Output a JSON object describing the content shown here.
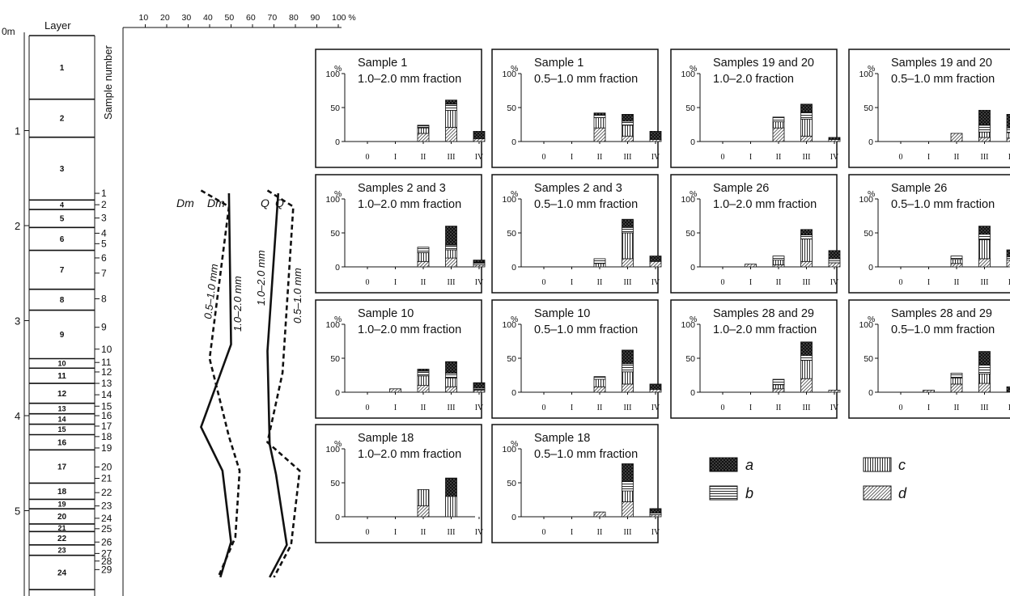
{
  "depth_axis": {
    "unit_top": "0m",
    "ticks": [
      "0",
      "1",
      "2",
      "3",
      "4",
      "5"
    ]
  },
  "layer_column": {
    "header": "Layer",
    "layers": [
      {
        "label": "1",
        "top": 0.0,
        "bottom": 0.67
      },
      {
        "label": "2",
        "top": 0.67,
        "bottom": 1.07
      },
      {
        "label": "3",
        "top": 1.07,
        "bottom": 1.73
      },
      {
        "label": "4",
        "top": 1.73,
        "bottom": 1.83
      },
      {
        "label": "5",
        "top": 1.83,
        "bottom": 2.02
      },
      {
        "label": "6",
        "top": 2.02,
        "bottom": 2.26
      },
      {
        "label": "7",
        "top": 2.26,
        "bottom": 2.67
      },
      {
        "label": "8",
        "top": 2.67,
        "bottom": 2.89
      },
      {
        "label": "9",
        "top": 2.89,
        "bottom": 3.4
      },
      {
        "label": "10",
        "top": 3.4,
        "bottom": 3.5
      },
      {
        "label": "11",
        "top": 3.5,
        "bottom": 3.66
      },
      {
        "label": "12",
        "top": 3.66,
        "bottom": 3.87
      },
      {
        "label": "13",
        "top": 3.87,
        "bottom": 3.98
      },
      {
        "label": "14",
        "top": 3.98,
        "bottom": 4.09
      },
      {
        "label": "15",
        "top": 4.09,
        "bottom": 4.2
      },
      {
        "label": "16",
        "top": 4.2,
        "bottom": 4.36
      },
      {
        "label": "17",
        "top": 4.36,
        "bottom": 4.71
      },
      {
        "label": "18",
        "top": 4.71,
        "bottom": 4.88
      },
      {
        "label": "19",
        "top": 4.88,
        "bottom": 4.98
      },
      {
        "label": "20",
        "top": 4.98,
        "bottom": 5.14
      },
      {
        "label": "21",
        "top": 5.14,
        "bottom": 5.22
      },
      {
        "label": "22",
        "top": 5.22,
        "bottom": 5.36
      },
      {
        "label": "23",
        "top": 5.36,
        "bottom": 5.47
      },
      {
        "label": "24",
        "top": 5.47,
        "bottom": 5.83
      }
    ]
  },
  "sample_numbers": {
    "header": "Sample number",
    "items": [
      {
        "label": "1",
        "depth": 1.66
      },
      {
        "label": "2",
        "depth": 1.78
      },
      {
        "label": "3",
        "depth": 1.92
      },
      {
        "label": "4",
        "depth": 2.08
      },
      {
        "label": "5",
        "depth": 2.19
      },
      {
        "label": "6",
        "depth": 2.34
      },
      {
        "label": "7",
        "depth": 2.5
      },
      {
        "label": "8",
        "depth": 2.77
      },
      {
        "label": "9",
        "depth": 3.07
      },
      {
        "label": "10",
        "depth": 3.3
      },
      {
        "label": "11",
        "depth": 3.44
      },
      {
        "label": "12",
        "depth": 3.54
      },
      {
        "label": "13",
        "depth": 3.66
      },
      {
        "label": "14",
        "depth": 3.78
      },
      {
        "label": "15",
        "depth": 3.9
      },
      {
        "label": "16",
        "depth": 4.0
      },
      {
        "label": "17",
        "depth": 4.11
      },
      {
        "label": "18",
        "depth": 4.22
      },
      {
        "label": "19",
        "depth": 4.34
      },
      {
        "label": "20",
        "depth": 4.54
      },
      {
        "label": "21",
        "depth": 4.66
      },
      {
        "label": "22",
        "depth": 4.81
      },
      {
        "label": "23",
        "depth": 4.95
      },
      {
        "label": "24",
        "depth": 5.08
      },
      {
        "label": "25",
        "depth": 5.19
      },
      {
        "label": "26",
        "depth": 5.33
      },
      {
        "label": "27",
        "depth": 5.45
      },
      {
        "label": "28",
        "depth": 5.53
      },
      {
        "label": "29",
        "depth": 5.62
      }
    ]
  },
  "curves_axis": {
    "ticks": [
      "10",
      "20",
      "30",
      "40",
      "50",
      "60",
      "70",
      "80",
      "90",
      "100 %"
    ]
  },
  "curve_labels": {
    "dm_top_1": "Dm",
    "dm_top_2": "Dm",
    "q_top_1": "Q",
    "q_top_2": "Q",
    "dm_fine": "0.5–1.0 mm",
    "dm_coarse": "1.0–2.0 mm",
    "q_coarse": "1.0–2.0 mm",
    "q_fine": "0.5–1.0 mm"
  },
  "chart_data": [
    {
      "type": "line",
      "title": "",
      "xlabel": "",
      "ylabel": "",
      "xlim": [
        0,
        100
      ],
      "ylim": [
        0,
        5.83
      ],
      "series": [
        {
          "name": "Dm 0.5–1.0 mm",
          "style": "dashed",
          "points": [
            [
              36,
              1.63
            ],
            [
              49,
              1.8
            ],
            [
              40,
              3.4
            ],
            [
              49,
              4.22
            ],
            [
              54,
              4.58
            ],
            [
              52,
              5.28
            ],
            [
              44,
              5.7
            ]
          ]
        },
        {
          "name": "Dm 1.0–2.0 mm",
          "style": "solid",
          "points": [
            [
              49,
              1.66
            ],
            [
              50,
              3.25
            ],
            [
              36,
              4.12
            ],
            [
              46,
              4.58
            ],
            [
              50,
              5.33
            ],
            [
              45,
              5.7
            ]
          ]
        },
        {
          "name": "Q 1.0–2.0 mm",
          "style": "solid",
          "points": [
            [
              72,
              1.66
            ],
            [
              67,
              3.32
            ],
            [
              68,
              4.3
            ],
            [
              71,
              4.62
            ],
            [
              76,
              5.36
            ],
            [
              68,
              5.7
            ]
          ]
        },
        {
          "name": "Q 0.5–1.0 mm",
          "style": "dashed",
          "points": [
            [
              67,
              1.63
            ],
            [
              79,
              1.8
            ],
            [
              74,
              3.55
            ],
            [
              67,
              4.28
            ],
            [
              82,
              4.58
            ],
            [
              78,
              5.36
            ],
            [
              70,
              5.7
            ]
          ]
        }
      ]
    },
    {
      "type": "bar",
      "categories": [
        "0",
        "I",
        "II",
        "III",
        "IV"
      ],
      "ylim": [
        0,
        100
      ],
      "yticks": [
        "0",
        "50",
        "100"
      ],
      "y_unit": "%",
      "legend_classes": [
        "a",
        "b",
        "c",
        "d"
      ],
      "panels": [
        {
          "title": [
            "Sample 1",
            "1.0–2.0 mm fraction"
          ],
          "bars": [
            null,
            null,
            {
              "a": 1,
              "b": 3,
              "c": 8,
              "d": 12
            },
            {
              "a": 6,
              "b": 9,
              "c": 25,
              "d": 21
            },
            {
              "a": 11,
              "b": 0,
              "c": 0,
              "d": 4
            }
          ]
        },
        {
          "title": [
            "Sample 1",
            "0.5–1.0 mm fraction"
          ],
          "bars": [
            null,
            null,
            {
              "a": 3,
              "b": 4,
              "c": 15,
              "d": 20
            },
            {
              "a": 10,
              "b": 6,
              "c": 16,
              "d": 8
            },
            {
              "a": 12,
              "b": 0,
              "c": 0,
              "d": 3
            }
          ]
        },
        {
          "title": [
            "Samples 19 and 20",
            "1.0–2.0 fraction"
          ],
          "bars": [
            null,
            null,
            {
              "a": 0,
              "b": 7,
              "c": 9,
              "d": 20
            },
            {
              "a": 12,
              "b": 10,
              "c": 25,
              "d": 8
            },
            {
              "a": 3,
              "b": 0,
              "c": 0,
              "d": 3
            }
          ]
        },
        {
          "title": [
            "Samples 19 and 20",
            "0.5–1.0 mm fraction"
          ],
          "bars": [
            null,
            null,
            {
              "a": 0,
              "b": 0,
              "c": 0,
              "d": 12
            },
            {
              "a": 22,
              "b": 10,
              "c": 8,
              "d": 6
            },
            {
              "a": 20,
              "b": 7,
              "c": 8,
              "d": 5
            }
          ]
        },
        {
          "title": [
            "Samples 2 and 3",
            "1.0–2.0 mm fraction"
          ],
          "bars": [
            null,
            null,
            {
              "a": 0,
              "b": 8,
              "c": 13,
              "d": 8
            },
            {
              "a": 28,
              "b": 7,
              "c": 12,
              "d": 13
            },
            {
              "a": 4,
              "b": 3,
              "c": 0,
              "d": 3
            }
          ]
        },
        {
          "title": [
            "Samples 2 and 3",
            "0.5–1.0 mm fraction"
          ],
          "bars": [
            null,
            null,
            {
              "a": 0,
              "b": 7,
              "c": 5,
              "d": 0
            },
            {
              "a": 12,
              "b": 8,
              "c": 38,
              "d": 12
            },
            {
              "a": 8,
              "b": 0,
              "c": 0,
              "d": 8
            }
          ]
        },
        {
          "title": [
            "Sample 26",
            "1.0–2.0 mm fraction"
          ],
          "bars": [
            null,
            {
              "a": 0,
              "b": 0,
              "c": 0,
              "d": 4
            },
            {
              "a": 0,
              "b": 6,
              "c": 7,
              "d": 3
            },
            {
              "a": 8,
              "b": 6,
              "c": 33,
              "d": 8
            },
            {
              "a": 12,
              "b": 6,
              "c": 0,
              "d": 6
            }
          ]
        },
        {
          "title": [
            "Sample 26",
            "0.5–1.0 mm fraction"
          ],
          "bars": [
            null,
            null,
            {
              "a": 0,
              "b": 5,
              "c": 6,
              "d": 5
            },
            {
              "a": 12,
              "b": 8,
              "c": 28,
              "d": 12
            },
            {
              "a": 10,
              "b": 5,
              "c": 0,
              "d": 10
            }
          ]
        },
        {
          "title": [
            "Sample 10",
            "1.0–2.0 mm fraction"
          ],
          "bars": [
            null,
            {
              "a": 0,
              "b": 0,
              "c": 0,
              "d": 5
            },
            {
              "a": 3,
              "b": 7,
              "c": 14,
              "d": 10
            },
            {
              "a": 17,
              "b": 7,
              "c": 13,
              "d": 8
            },
            {
              "a": 8,
              "b": 3,
              "c": 0,
              "d": 3
            }
          ]
        },
        {
          "title": [
            "Sample 10",
            "0.5–1.0 mm fraction"
          ],
          "bars": [
            null,
            null,
            {
              "a": 0,
              "b": 4,
              "c": 11,
              "d": 8
            },
            {
              "a": 20,
              "b": 12,
              "c": 18,
              "d": 12
            },
            {
              "a": 8,
              "b": 0,
              "c": 0,
              "d": 4
            }
          ]
        },
        {
          "title": [
            "Samples 28 and 29",
            "1.0–2.0 mm fraction"
          ],
          "bars": [
            null,
            null,
            {
              "a": 0,
              "b": 8,
              "c": 6,
              "d": 5
            },
            {
              "a": 20,
              "b": 7,
              "c": 27,
              "d": 20
            },
            {
              "a": 0,
              "b": 0,
              "c": 0,
              "d": 3
            }
          ]
        },
        {
          "title": [
            "Samples 28 and 29",
            "0.5–1.0 mm fraction"
          ],
          "bars": [
            null,
            {
              "a": 0,
              "b": 0,
              "c": 0,
              "d": 3
            },
            {
              "a": 0,
              "b": 7,
              "c": 9,
              "d": 12
            },
            {
              "a": 20,
              "b": 13,
              "c": 14,
              "d": 13
            },
            {
              "a": 8,
              "b": 0,
              "c": 0,
              "d": 0
            }
          ]
        },
        {
          "title": [
            "Sample 18",
            "1.0–2.0 mm fraction"
          ],
          "bars": [
            null,
            null,
            {
              "a": 0,
              "b": 0,
              "c": 24,
              "d": 16
            },
            {
              "a": 27,
              "b": 0,
              "c": 30,
              "d": 0
            },
            null
          ]
        },
        {
          "title": [
            "Sample 18",
            "0.5–1.0 mm fraction"
          ],
          "bars": [
            null,
            null,
            {
              "a": 0,
              "b": 0,
              "c": 0,
              "d": 7
            },
            {
              "a": 26,
              "b": 14,
              "c": 16,
              "d": 22
            },
            {
              "a": 6,
              "b": 3,
              "c": 0,
              "d": 3
            }
          ]
        }
      ]
    }
  ],
  "legend": {
    "items": [
      {
        "key": "a",
        "pattern": "dotted-black"
      },
      {
        "key": "b",
        "pattern": "horizontal-lines"
      },
      {
        "key": "c",
        "pattern": "vertical-lines"
      },
      {
        "key": "d",
        "pattern": "diagonal-hatch"
      }
    ]
  }
}
